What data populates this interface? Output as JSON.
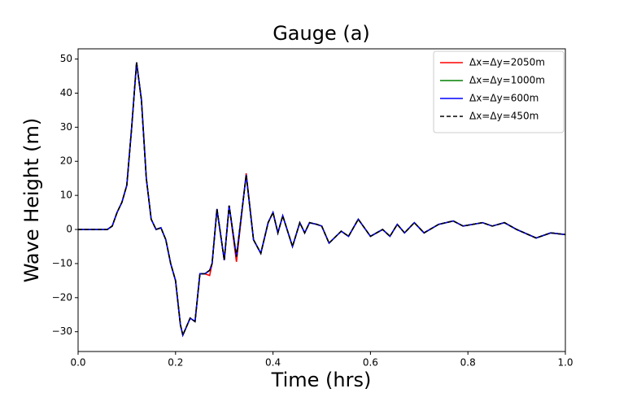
{
  "chart_data": {
    "type": "line",
    "title": "Gauge (a)",
    "xlabel": "Time (hrs)",
    "ylabel": "Wave Height (m)",
    "x": [
      0,
      0.06,
      0.07,
      0.08,
      0.09,
      0.1,
      0.11,
      0.12,
      0.13,
      0.14,
      0.15,
      0.16,
      0.17,
      0.18,
      0.19,
      0.2,
      0.21,
      0.215,
      0.23,
      0.24,
      0.25,
      0.26,
      0.27,
      0.275,
      0.285,
      0.3,
      0.31,
      0.325,
      0.345,
      0.36,
      0.375,
      0.39,
      0.4,
      0.41,
      0.42,
      0.44,
      0.455,
      0.465,
      0.475,
      0.49,
      0.5,
      0.515,
      0.54,
      0.555,
      0.575,
      0.6,
      0.625,
      0.64,
      0.655,
      0.67,
      0.69,
      0.71,
      0.74,
      0.77,
      0.79,
      0.83,
      0.85,
      0.875,
      0.9,
      0.94,
      0.97,
      1.0
    ],
    "series": [
      {
        "name": "Δx=Δy=2050m",
        "color": "#ff0000",
        "linestyle": "solid",
        "values": [
          0,
          0,
          1,
          5,
          8,
          13,
          30,
          49,
          38,
          15,
          3,
          0,
          0.5,
          -3,
          -10,
          -15,
          -28,
          -31,
          -26,
          -27,
          -13,
          -13,
          -13.5,
          -10,
          6,
          -9,
          7,
          -9.5,
          16.5,
          -3,
          -7,
          2,
          5,
          -1,
          4,
          -5,
          2,
          -1,
          2,
          1.5,
          1,
          -4,
          -0.5,
          -2,
          3,
          -2,
          0,
          -2,
          1.5,
          -1,
          2,
          -1,
          1.5,
          2.5,
          1,
          2,
          1,
          2,
          0,
          -2.5,
          -1,
          -1.5
        ]
      },
      {
        "name": "Δx=Δy=1000m",
        "color": "#008000",
        "linestyle": "solid",
        "values": [
          0,
          0,
          1,
          5,
          8,
          13,
          30,
          49,
          38,
          15,
          3,
          0,
          0.5,
          -3,
          -10,
          -15,
          -28,
          -31,
          -26,
          -27,
          -13,
          -13,
          -12,
          -10,
          6,
          -9,
          7,
          -8,
          16,
          -3,
          -7,
          2,
          5,
          -1,
          4,
          -5,
          2,
          -1,
          2,
          1.5,
          1,
          -4,
          -0.5,
          -2,
          3,
          -2,
          0,
          -2,
          1.5,
          -1,
          2,
          -1,
          1.5,
          2.5,
          1,
          2,
          1,
          2,
          0,
          -2.5,
          -1,
          -1.5
        ]
      },
      {
        "name": "Δx=Δy=600m",
        "color": "#0000ff",
        "linestyle": "solid",
        "values": [
          0,
          0,
          1,
          5,
          8,
          13,
          30,
          49,
          38,
          15,
          3,
          0,
          0.5,
          -3,
          -10,
          -15,
          -28,
          -31,
          -26,
          -27,
          -13,
          -13,
          -12,
          -10,
          6,
          -9,
          7,
          -8,
          16,
          -3,
          -7,
          2,
          5,
          -1,
          4,
          -5,
          2,
          -1,
          2,
          1.5,
          1,
          -4,
          -0.5,
          -2,
          3,
          -2,
          0,
          -2,
          1.5,
          -1,
          2,
          -1,
          1.5,
          2.5,
          1,
          2,
          1,
          2,
          0,
          -2.5,
          -1,
          -1.5
        ]
      },
      {
        "name": "Δx=Δy=450m",
        "color": "#000000",
        "linestyle": "dashed",
        "values": [
          0,
          0,
          1,
          5,
          8,
          13,
          30,
          49,
          38,
          15,
          3,
          0,
          0.5,
          -3,
          -10,
          -15,
          -28,
          -31,
          -26,
          -27,
          -13,
          -13,
          -12,
          -10,
          6,
          -9,
          7,
          -8,
          16,
          -3,
          -7,
          2,
          5,
          -1,
          4,
          -5,
          2,
          -1,
          2,
          1.5,
          1,
          -4,
          -0.5,
          -2,
          3,
          -2,
          0,
          -2,
          1.5,
          -1,
          2,
          -1,
          1.5,
          2.5,
          1,
          2,
          1,
          2,
          0,
          -2.5,
          -1,
          -1.5
        ]
      }
    ],
    "xlim": [
      0,
      1
    ],
    "ylim": [
      -35.8,
      53
    ],
    "xticks": [
      {
        "value": 0,
        "label": "0.0"
      },
      0.2,
      0.4,
      0.6,
      0.8,
      {
        "value": 1,
        "label": "1.0"
      }
    ],
    "yticks": [
      {
        "value": -30,
        "label": "−30"
      },
      {
        "value": -20,
        "label": "−20"
      },
      {
        "value": -10,
        "label": "−10"
      },
      0,
      10,
      20,
      30,
      40,
      50
    ],
    "legend": "upper right"
  }
}
